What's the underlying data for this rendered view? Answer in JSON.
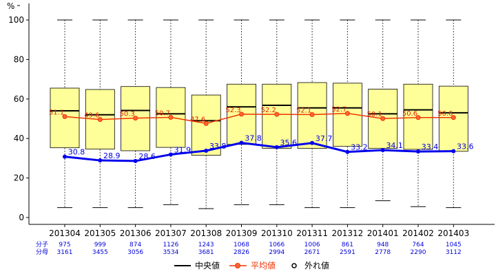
{
  "chart_data": {
    "type": "box",
    "ylabel": "%",
    "ylim": [
      0,
      100
    ],
    "yticks": [
      0,
      20,
      40,
      60,
      80,
      100
    ],
    "categories": [
      "201304",
      "201305",
      "201306",
      "201307",
      "201308",
      "201309",
      "201310",
      "201311",
      "201312",
      "201401",
      "201402",
      "201403"
    ],
    "boxes": [
      {
        "min": 5.0,
        "q1": 35.3,
        "median": 54.0,
        "q3": 65.5,
        "max": 100
      },
      {
        "min": 5.0,
        "q1": 34.6,
        "median": 52.0,
        "q3": 64.8,
        "max": 100
      },
      {
        "min": 5.0,
        "q1": 33.8,
        "median": 54.2,
        "q3": 66.3,
        "max": 100
      },
      {
        "min": 6.5,
        "q1": 35.5,
        "median": 52.5,
        "q3": 65.8,
        "max": 100
      },
      {
        "min": 4.5,
        "q1": 31.5,
        "median": 49.0,
        "q3": 62.0,
        "max": 100
      },
      {
        "min": 6.5,
        "q1": 37.0,
        "median": 56.0,
        "q3": 67.5,
        "max": 100
      },
      {
        "min": 6.5,
        "q1": 35.0,
        "median": 56.8,
        "q3": 67.5,
        "max": 100
      },
      {
        "min": 5.0,
        "q1": 35.0,
        "median": 55.5,
        "q3": 68.3,
        "max": 100
      },
      {
        "min": 5.0,
        "q1": 36.0,
        "median": 55.5,
        "q3": 68.0,
        "max": 100
      },
      {
        "min": 8.5,
        "q1": 35.0,
        "median": 52.5,
        "q3": 65.0,
        "max": 100
      },
      {
        "min": 5.5,
        "q1": 34.5,
        "median": 54.5,
        "q3": 67.5,
        "max": 100
      },
      {
        "min": 5.0,
        "q1": 33.5,
        "median": 53.0,
        "q3": 66.5,
        "max": 100
      }
    ],
    "series": [
      {
        "name": "平均値",
        "color": "#ee3300",
        "values": [
          51.1,
          49.6,
          50.3,
          50.7,
          47.6,
          52.3,
          52.2,
          52.1,
          52.7,
          50.1,
          50.6,
          50.6
        ]
      },
      {
        "name": "",
        "color": "#0000ee",
        "values": [
          30.8,
          28.9,
          28.6,
          31.9,
          33.8,
          37.8,
          35.6,
          37.7,
          33.2,
          34.1,
          33.4,
          33.6
        ]
      }
    ],
    "numerator_label": "分子",
    "denominator_label": "分母",
    "numerators": [
      "975",
      "999",
      "874",
      "1126",
      "1243",
      "1068",
      "1066",
      "1006",
      "861",
      "948",
      "764",
      "1045"
    ],
    "denominators": [
      "3161",
      "3455",
      "3056",
      "3534",
      "3681",
      "2826",
      "2994",
      "2671",
      "2591",
      "2778",
      "2290",
      "3112"
    ],
    "legend": [
      {
        "label": "中央値",
        "color": "#000000"
      },
      {
        "label": "平均値",
        "color": "#ee3300"
      },
      {
        "label": "外れ値",
        "color": "#000000"
      }
    ],
    "box_fill": "#ffff99"
  }
}
